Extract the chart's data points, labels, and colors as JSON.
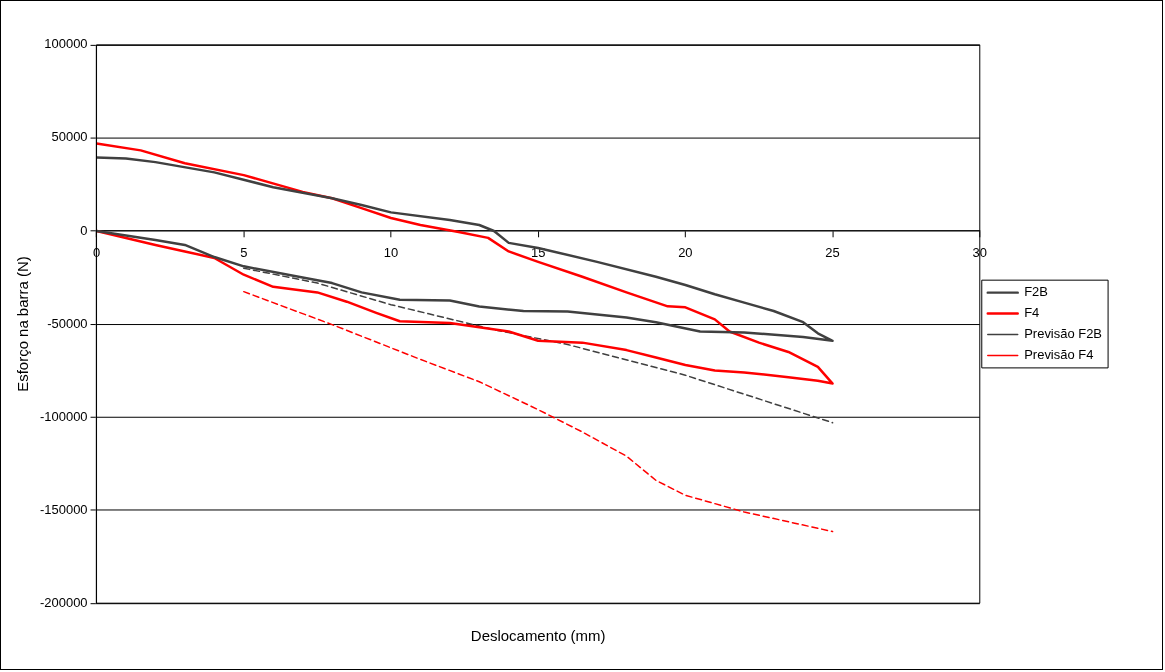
{
  "chart_data": {
    "type": "line",
    "xlabel": "Deslocamento (mm)",
    "ylabel": "Esforço na barra (N)",
    "xlim": [
      0,
      30
    ],
    "xticks": [
      0,
      5,
      10,
      15,
      20,
      25,
      30
    ],
    "ylim": [
      -200000,
      100000
    ],
    "yticks": [
      -200000,
      -150000,
      -100000,
      -50000,
      0,
      50000,
      100000
    ],
    "grid": "y",
    "legend": "right",
    "marker": "none",
    "series": [
      {
        "name": "F2B",
        "color": "#404040",
        "line_style": "solid",
        "x": [
          0,
          2,
          3,
          4,
          5,
          7,
          8,
          9,
          10.3,
          12,
          13,
          14.5,
          16,
          18,
          19,
          20.5,
          22,
          24,
          25,
          24.5,
          24,
          23,
          22,
          21,
          20,
          19,
          17,
          15,
          14,
          13.5,
          13,
          12,
          10,
          9,
          8,
          6,
          4,
          2,
          1,
          0
        ],
        "values": [
          0,
          -4800,
          -7500,
          -14000,
          -19000,
          -25000,
          -28000,
          -33000,
          -37000,
          -37400,
          -40600,
          -43000,
          -43300,
          -46500,
          -49000,
          -54000,
          -54500,
          -57000,
          -59000,
          -55000,
          -49000,
          -43000,
          -38500,
          -34000,
          -29000,
          -24600,
          -16600,
          -9100,
          -6400,
          0,
          3200,
          5900,
          10000,
          14000,
          17600,
          23500,
          31500,
          37000,
          39000,
          39500
        ]
      },
      {
        "name": "F4",
        "color": "#ff0000",
        "line_style": "solid",
        "x": [
          0,
          2,
          3,
          4,
          5,
          6,
          7.5,
          8.5,
          9.5,
          10.3,
          12,
          14,
          15,
          16.5,
          18,
          19,
          20,
          21,
          22,
          23.5,
          24.5,
          25,
          24.5,
          23.5,
          22.5,
          21.5,
          21,
          20,
          19.4,
          18,
          16.5,
          15,
          14,
          13.3,
          12.3,
          11,
          10,
          9,
          8,
          7,
          5,
          3,
          1.5,
          0
        ],
        "values": [
          0,
          -7500,
          -11000,
          -14500,
          -23500,
          -30000,
          -33000,
          -38000,
          -44000,
          -48500,
          -49500,
          -54000,
          -59000,
          -60000,
          -64000,
          -68000,
          -72000,
          -75000,
          -76000,
          -78600,
          -80500,
          -82000,
          -73000,
          -65000,
          -60000,
          -54000,
          -47500,
          -41000,
          -40500,
          -33000,
          -24600,
          -16600,
          -11000,
          -3700,
          -500,
          3200,
          7000,
          12300,
          17600,
          21000,
          30000,
          36400,
          43300,
          47000
        ]
      },
      {
        "name": "Previsão F2B",
        "color": "#404040",
        "line_style": "dashed",
        "x": [
          5,
          7.5,
          10,
          13.5,
          16,
          20,
          25
        ],
        "values": [
          -20000,
          -28000,
          -39600,
          -53000,
          -61000,
          -77500,
          -103000
        ]
      },
      {
        "name": "Previsão F4",
        "color": "#ff0000",
        "line_style": "dashed",
        "x": [
          5,
          8,
          11,
          13,
          15,
          16.5,
          18,
          19,
          20,
          22,
          25
        ],
        "values": [
          -32600,
          -50300,
          -69000,
          -81000,
          -96000,
          -108000,
          -121000,
          -134000,
          -142000,
          -151000,
          -161500
        ]
      }
    ]
  }
}
